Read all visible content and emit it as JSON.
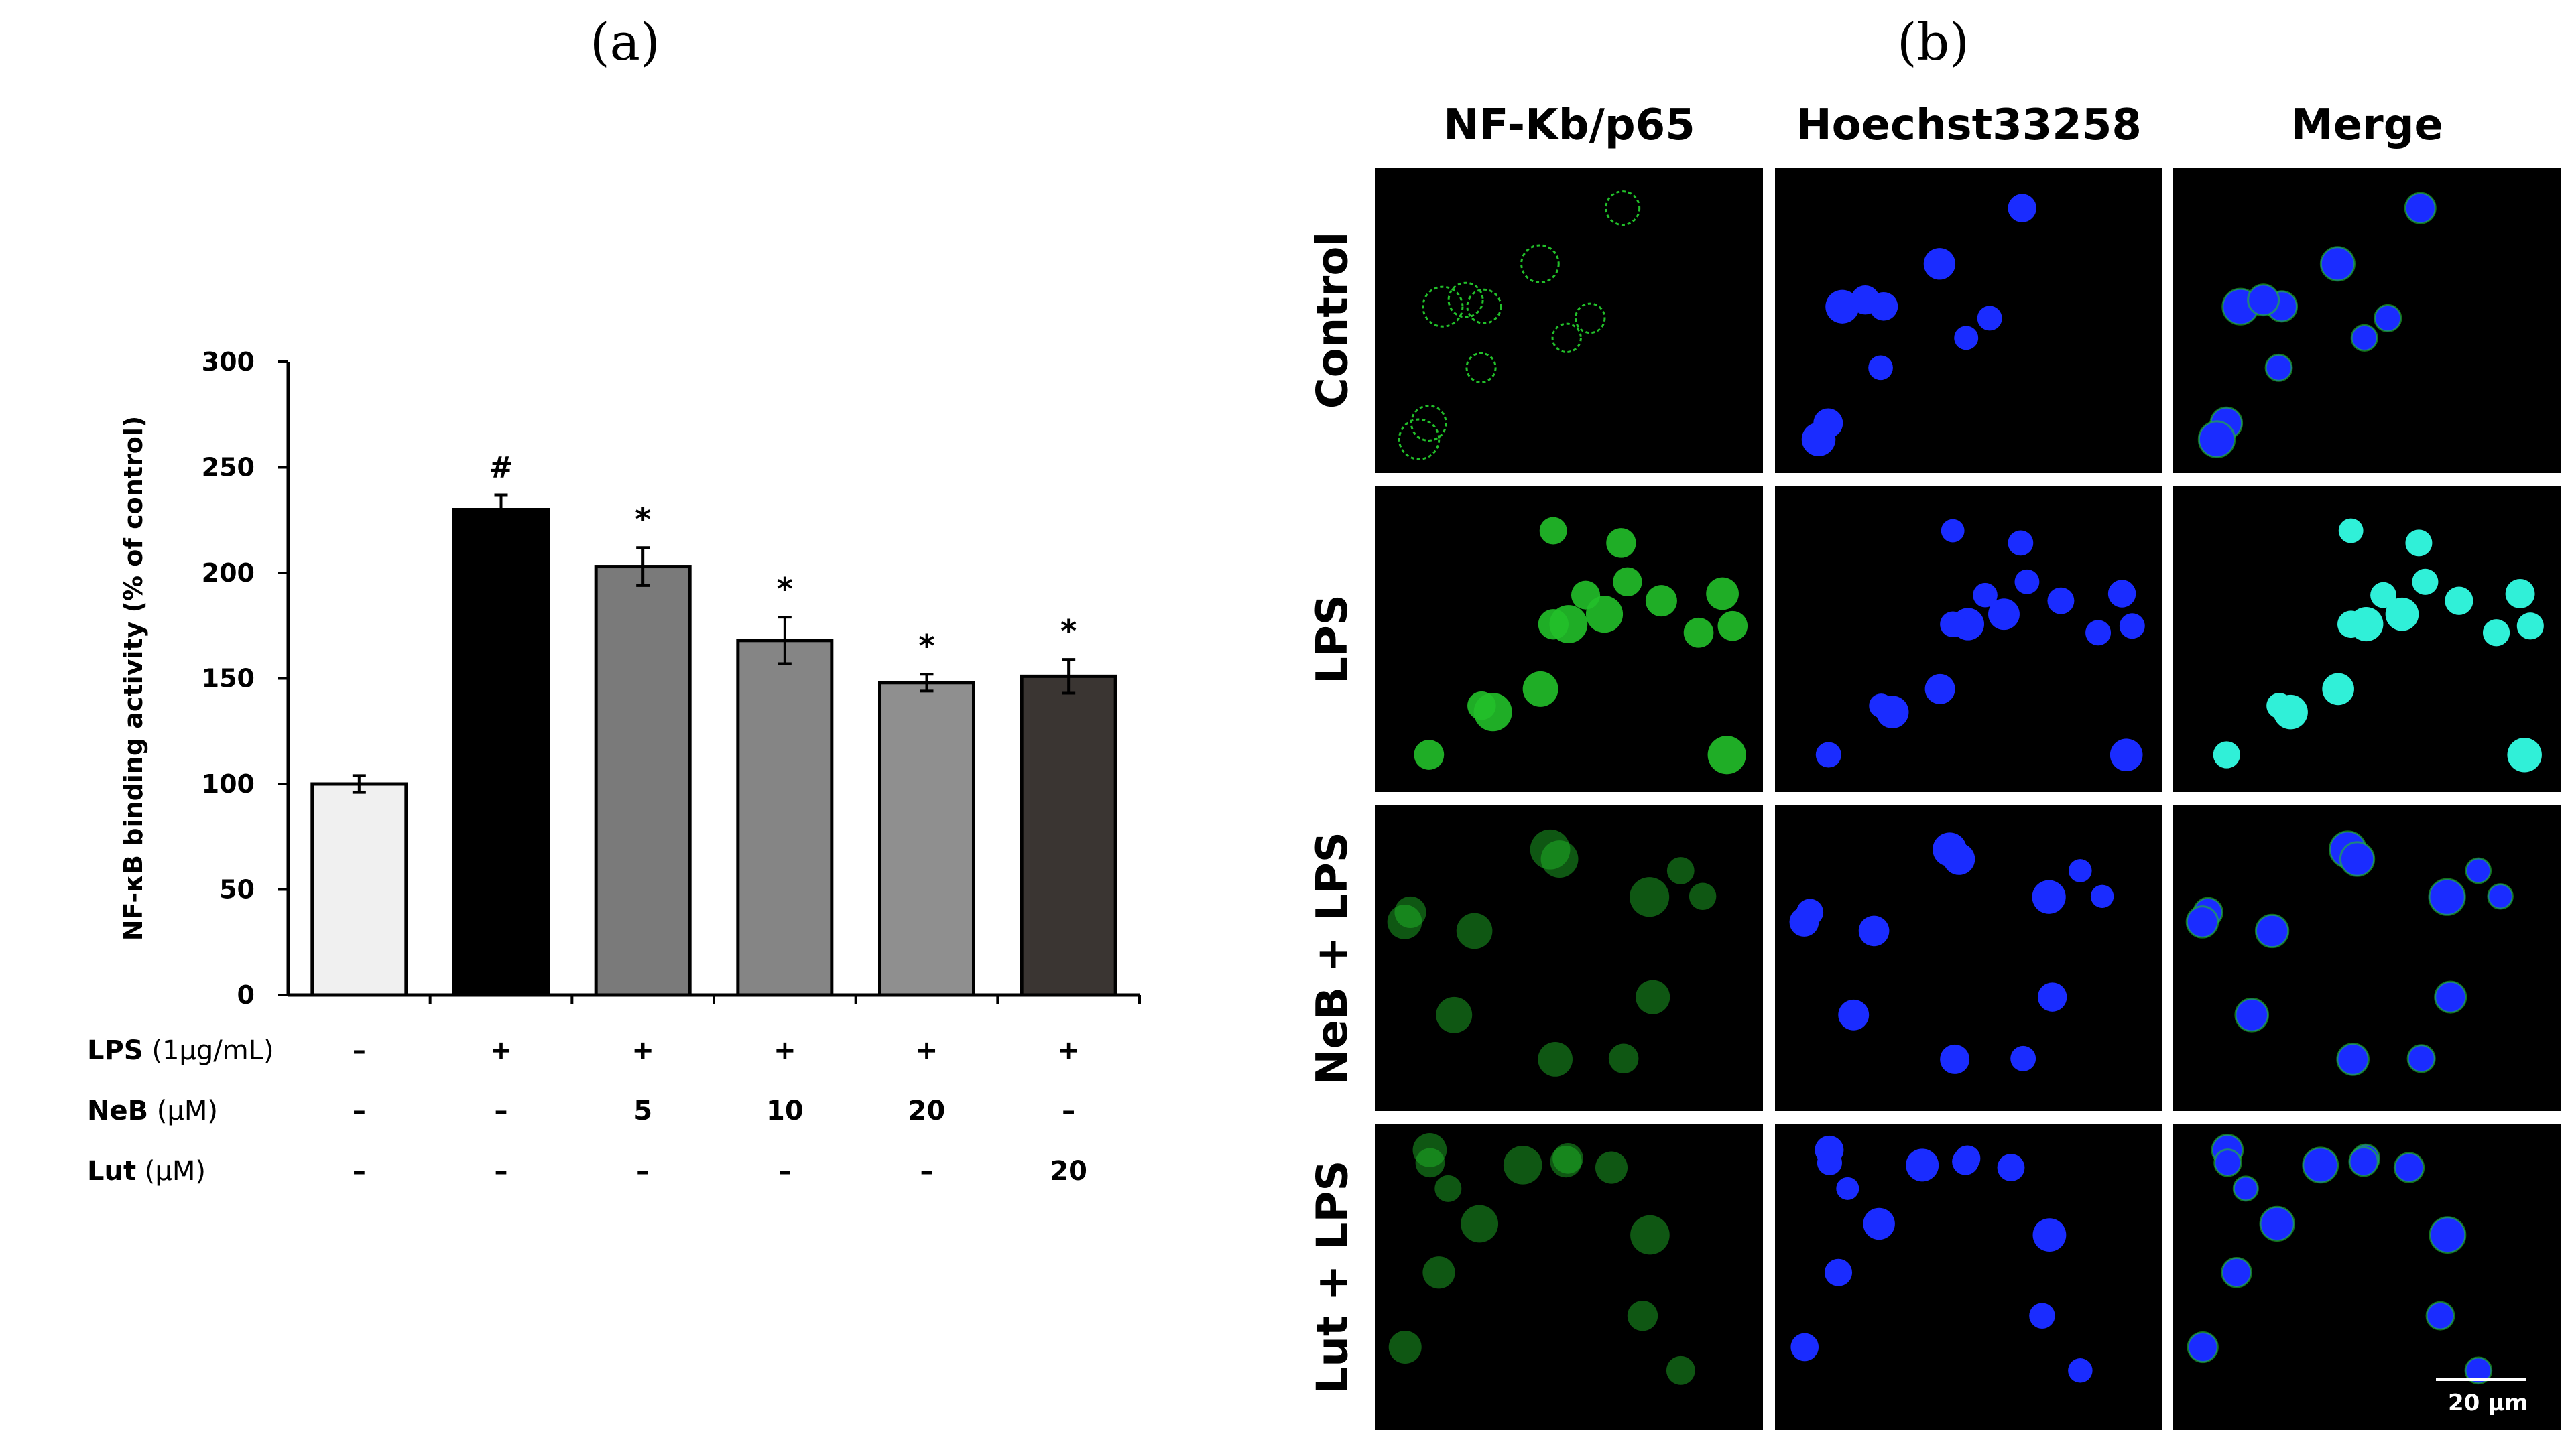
{
  "panels": {
    "a": "(a)",
    "b": "(b)"
  },
  "chart_data": {
    "type": "bar",
    "ylabel": "NF-κB binding activity (% of control)",
    "ylim": [
      0,
      300
    ],
    "yticks": [
      0,
      50,
      100,
      150,
      200,
      250,
      300
    ],
    "grid": false,
    "legend": "none",
    "values": [
      100,
      230,
      203,
      168,
      148,
      151
    ],
    "errors": [
      4,
      7,
      9,
      11,
      4,
      8
    ],
    "significance": [
      "",
      "#",
      "*",
      "*",
      "*",
      "*"
    ],
    "bar_colors": [
      "#f0f0f0",
      "#000000",
      "#7a7a7a",
      "#858585",
      "#8f8f8f",
      "#3a3532"
    ],
    "conditions": [
      {
        "label": "LPS",
        "unit": "(1µg/mL)",
        "values": [
          "–",
          "+",
          "+",
          "+",
          "+",
          "+"
        ]
      },
      {
        "label": "NeB",
        "unit": "(µM)",
        "values": [
          "–",
          "–",
          "5",
          "10",
          "20",
          "–"
        ]
      },
      {
        "label": "Lut",
        "unit": "(µM)",
        "values": [
          "–",
          "–",
          "–",
          "–",
          "–",
          "20"
        ]
      }
    ]
  },
  "microscopy": {
    "columns": [
      "NF-Kb/p65",
      "Hoechst33258",
      "Merge"
    ],
    "rows": [
      "Control",
      "LPS",
      "NeB + LPS",
      "Lut + LPS"
    ],
    "channel_colors": {
      "p65": "#22c02a",
      "hoechst": "#1a2cff",
      "merge_nuclear": "#30f0d8"
    },
    "scale_bar": "20 µm"
  }
}
